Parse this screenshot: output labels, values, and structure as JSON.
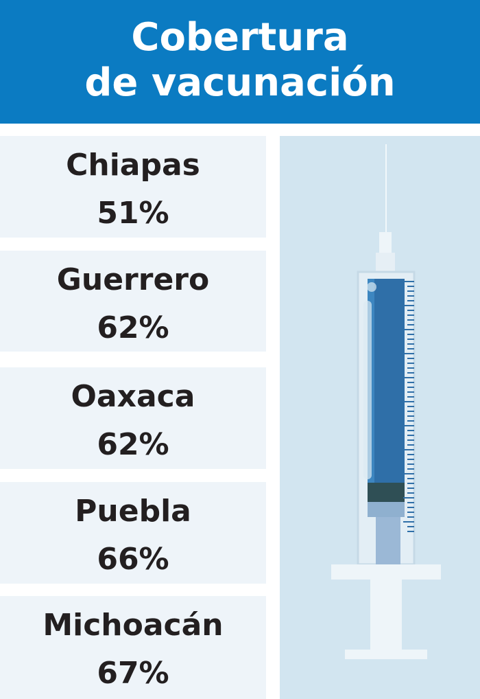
{
  "header": {
    "title_lines": [
      "Cobertura",
      "de vacunación"
    ]
  },
  "items": [
    {
      "name": "Chiapas",
      "value": "51%"
    },
    {
      "name": "Guerrero",
      "value": "62%"
    },
    {
      "name": "Oaxaca",
      "value": "62%"
    },
    {
      "name": "Puebla",
      "value": "66%"
    },
    {
      "name": "Michoacán",
      "value": "67%"
    }
  ]
}
